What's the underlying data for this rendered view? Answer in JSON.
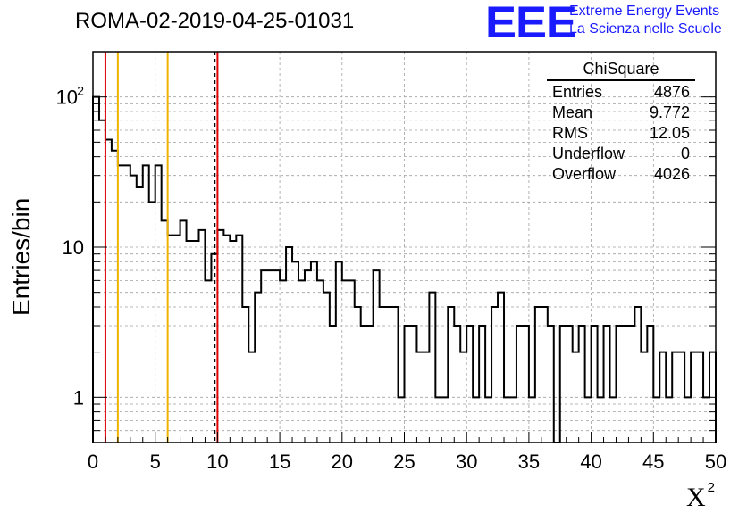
{
  "header": {
    "title": "ROMA-02-2019-04-25-01031",
    "logo_text": "EEE",
    "logo_line1": "Extreme Energy Events",
    "logo_line2": "La Scienza nelle Scuole"
  },
  "stats_box": {
    "title": "ChiSquare",
    "rows": [
      {
        "label": "Entries",
        "value": "4876"
      },
      {
        "label": "Mean",
        "value": "9.772"
      },
      {
        "label": "RMS",
        "value": "12.05"
      },
      {
        "label": "Underflow",
        "value": "0"
      },
      {
        "label": "Overflow",
        "value": "4026"
      }
    ]
  },
  "colors": {
    "red_line": "#e00000",
    "orange_line": "#f0b400",
    "histogram": "#000000",
    "grid": "#a0a0a0",
    "logo": "#1a1aff"
  },
  "chart_data": {
    "type": "bar",
    "title": "ROMA-02-2019-04-25-01031",
    "xlabel": "X",
    "xlabel_superscript": "2",
    "ylabel": "Entries/bin",
    "xlim": [
      0,
      50
    ],
    "ylim": [
      0.5,
      200
    ],
    "y_scale": "log",
    "grid": true,
    "x_ticks": [
      0,
      5,
      10,
      15,
      20,
      25,
      30,
      35,
      40,
      45,
      50
    ],
    "x_tick_labels": [
      "0",
      "5",
      "10",
      "15",
      "20",
      "25",
      "30",
      "35",
      "40",
      "45",
      "50"
    ],
    "y_tick_labels": [
      "1",
      "10",
      "10"
    ],
    "y_tick_superscript": "2",
    "bin_width": 0.5,
    "bin_contents": [
      100,
      70,
      52,
      44,
      35,
      35,
      30,
      25,
      35,
      20,
      35,
      15,
      12,
      12,
      15,
      11,
      11,
      13,
      6,
      9,
      13,
      12,
      11,
      12,
      4,
      2,
      5,
      7,
      7,
      7,
      6,
      10,
      8,
      6,
      7,
      8,
      6,
      5,
      3,
      8,
      6,
      6,
      4,
      3,
      3,
      7,
      4,
      4,
      4,
      1,
      3,
      3,
      2,
      2,
      5,
      1,
      1,
      4,
      3,
      2,
      3,
      1,
      3,
      1,
      4,
      5,
      1,
      1,
      3,
      3,
      1,
      4,
      4,
      3,
      0.5,
      3,
      3,
      2,
      3,
      1,
      3,
      1,
      3,
      1,
      3,
      3,
      3,
      4,
      2,
      3,
      1,
      2,
      1,
      2,
      2,
      1,
      2,
      2,
      1,
      2
    ],
    "vertical_lines": [
      {
        "x": 1,
        "color": "#e00000",
        "style": "solid"
      },
      {
        "x": 2,
        "color": "#f0b400",
        "style": "solid"
      },
      {
        "x": 6,
        "color": "#f0b400",
        "style": "solid"
      },
      {
        "x": 9.772,
        "color": "#000000",
        "style": "dashed"
      },
      {
        "x": 10,
        "color": "#e00000",
        "style": "solid"
      }
    ]
  }
}
